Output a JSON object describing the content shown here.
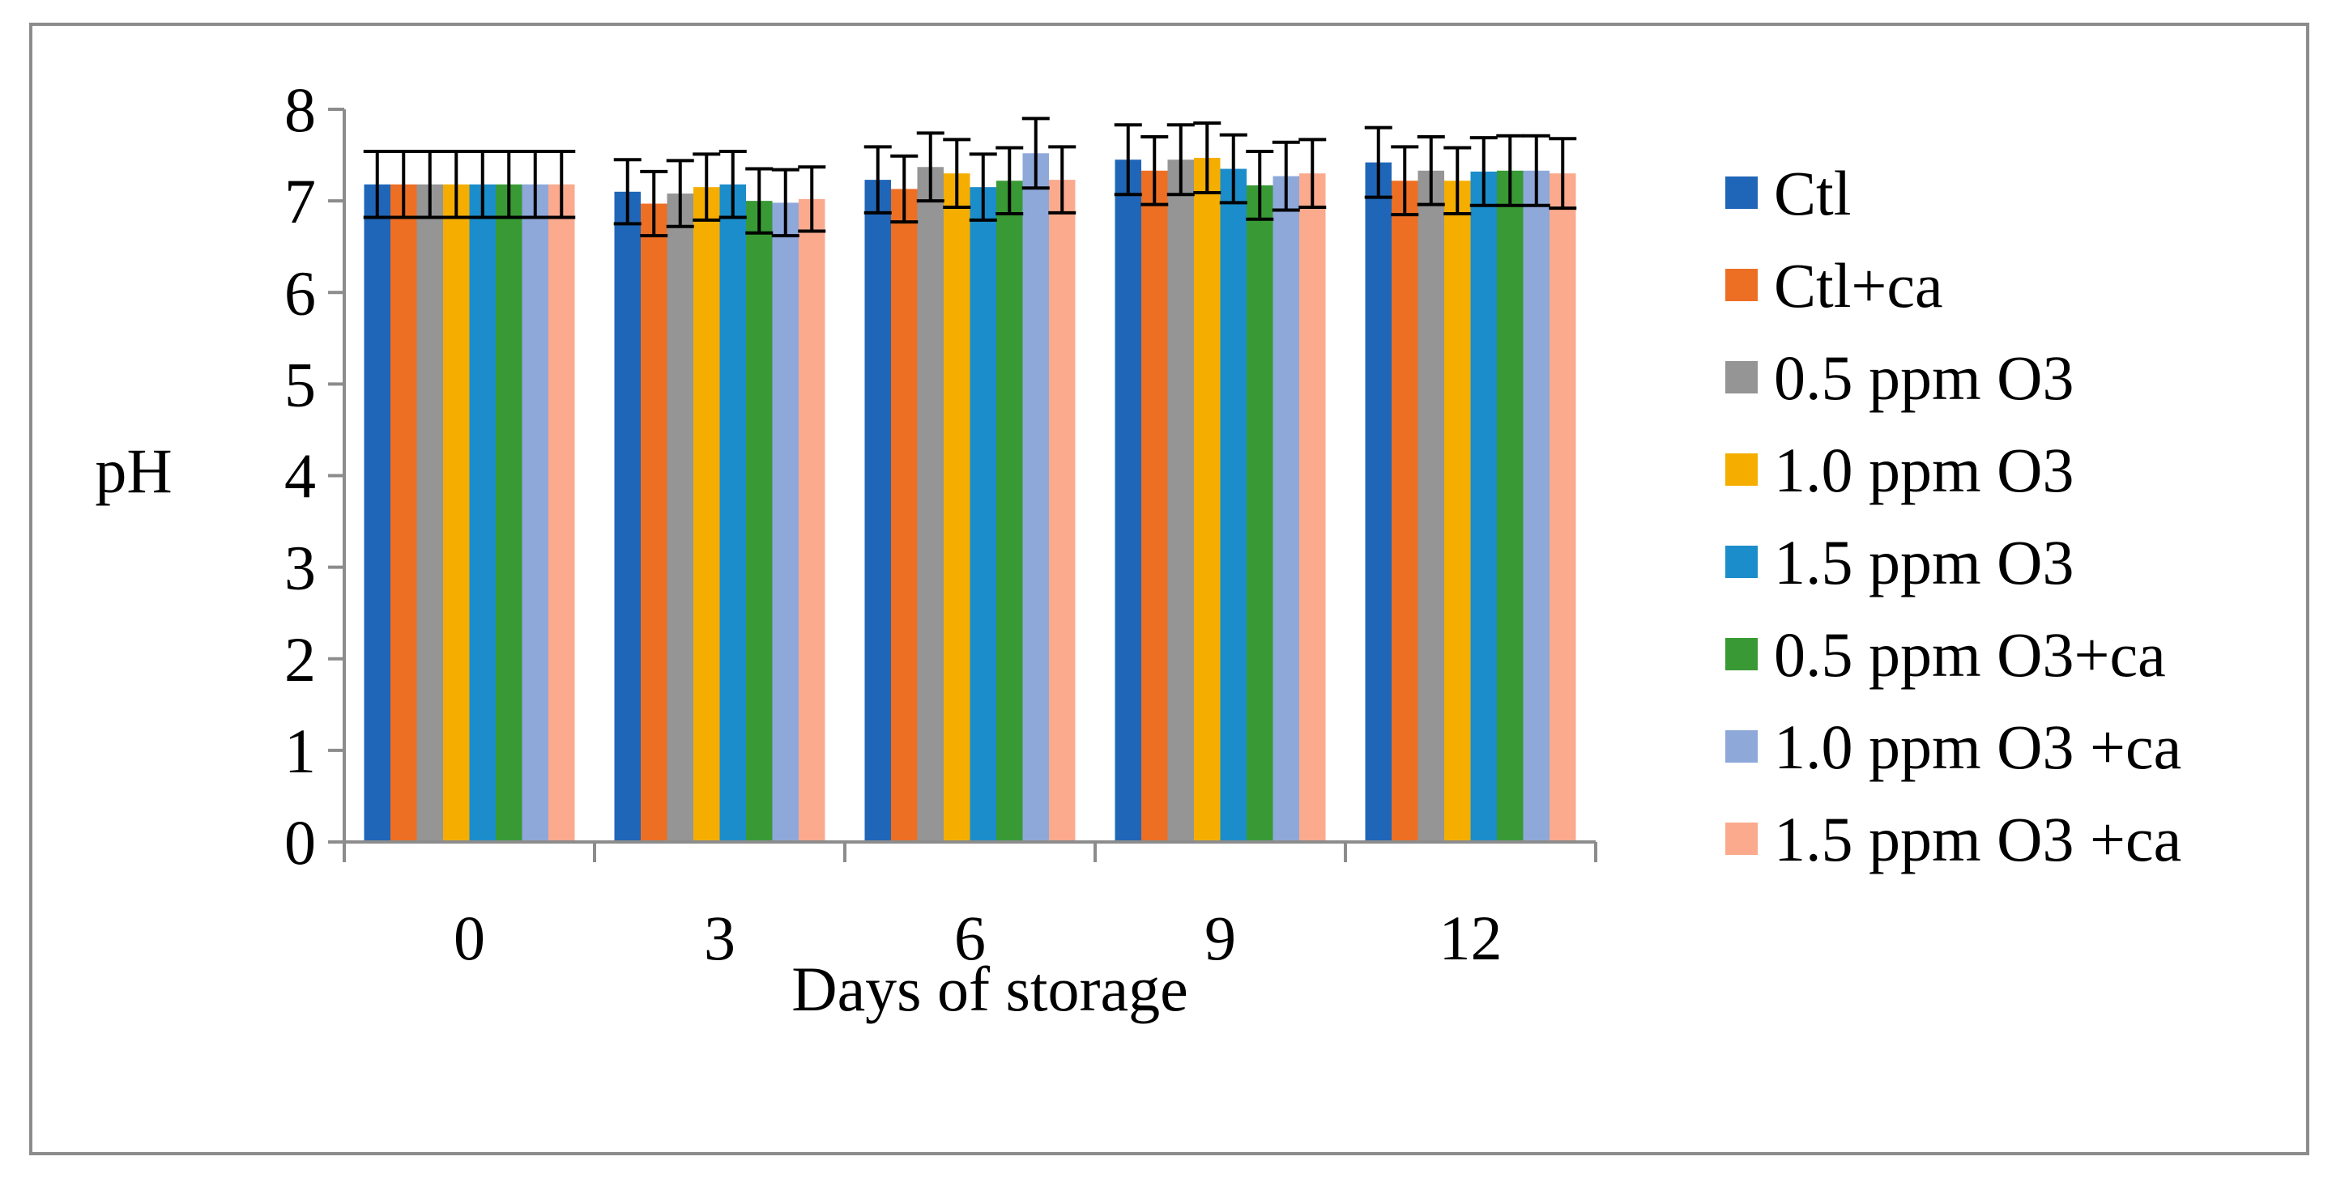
{
  "chart_data": {
    "type": "bar",
    "title": "",
    "xlabel": "Days of storage",
    "ylabel": "pH",
    "ylim": [
      0,
      8
    ],
    "yticks": [
      "0",
      "1",
      "2",
      "3",
      "4",
      "5",
      "6",
      "7",
      "8"
    ],
    "grid": false,
    "legend_position": "right",
    "categories": [
      "0",
      "3",
      "6",
      "9",
      "12"
    ],
    "series": [
      {
        "name": "Ctl",
        "color": "#1F66B8",
        "values": [
          7.18,
          7.1,
          7.23,
          7.45,
          7.42
        ],
        "errors": [
          0.36,
          0.35,
          0.36,
          0.38,
          0.38
        ]
      },
      {
        "name": "Ctl+ca",
        "color": "#ED6F24",
        "values": [
          7.18,
          6.97,
          7.13,
          7.33,
          7.22
        ],
        "errors": [
          0.36,
          0.35,
          0.36,
          0.37,
          0.37
        ]
      },
      {
        "name": "0.5 ppm O3",
        "color": "#959595",
        "values": [
          7.18,
          7.08,
          7.37,
          7.45,
          7.33
        ],
        "errors": [
          0.36,
          0.36,
          0.37,
          0.38,
          0.37
        ]
      },
      {
        "name": "1.0 ppm O3",
        "color": "#F5AE00",
        "values": [
          7.18,
          7.15,
          7.3,
          7.47,
          7.22
        ],
        "errors": [
          0.36,
          0.36,
          0.37,
          0.38,
          0.36
        ]
      },
      {
        "name": "1.5 ppm O3",
        "color": "#1B8DCB",
        "values": [
          7.18,
          7.18,
          7.15,
          7.35,
          7.32
        ],
        "errors": [
          0.36,
          0.36,
          0.36,
          0.37,
          0.37
        ]
      },
      {
        "name": "0.5 ppm O3+ca",
        "color": "#399A35",
        "values": [
          7.18,
          7.0,
          7.22,
          7.17,
          7.33
        ],
        "errors": [
          0.36,
          0.35,
          0.36,
          0.37,
          0.38
        ]
      },
      {
        "name": "1.0 ppm O3 +ca",
        "color": "#8EA8DA",
        "values": [
          7.18,
          6.98,
          7.52,
          7.27,
          7.33
        ],
        "errors": [
          0.36,
          0.36,
          0.38,
          0.37,
          0.38
        ]
      },
      {
        "name": "1.5 ppm O3 +ca",
        "color": "#FBAA8E",
        "values": [
          7.18,
          7.02,
          7.23,
          7.3,
          7.3
        ],
        "errors": [
          0.36,
          0.35,
          0.36,
          0.37,
          0.38
        ]
      }
    ]
  }
}
